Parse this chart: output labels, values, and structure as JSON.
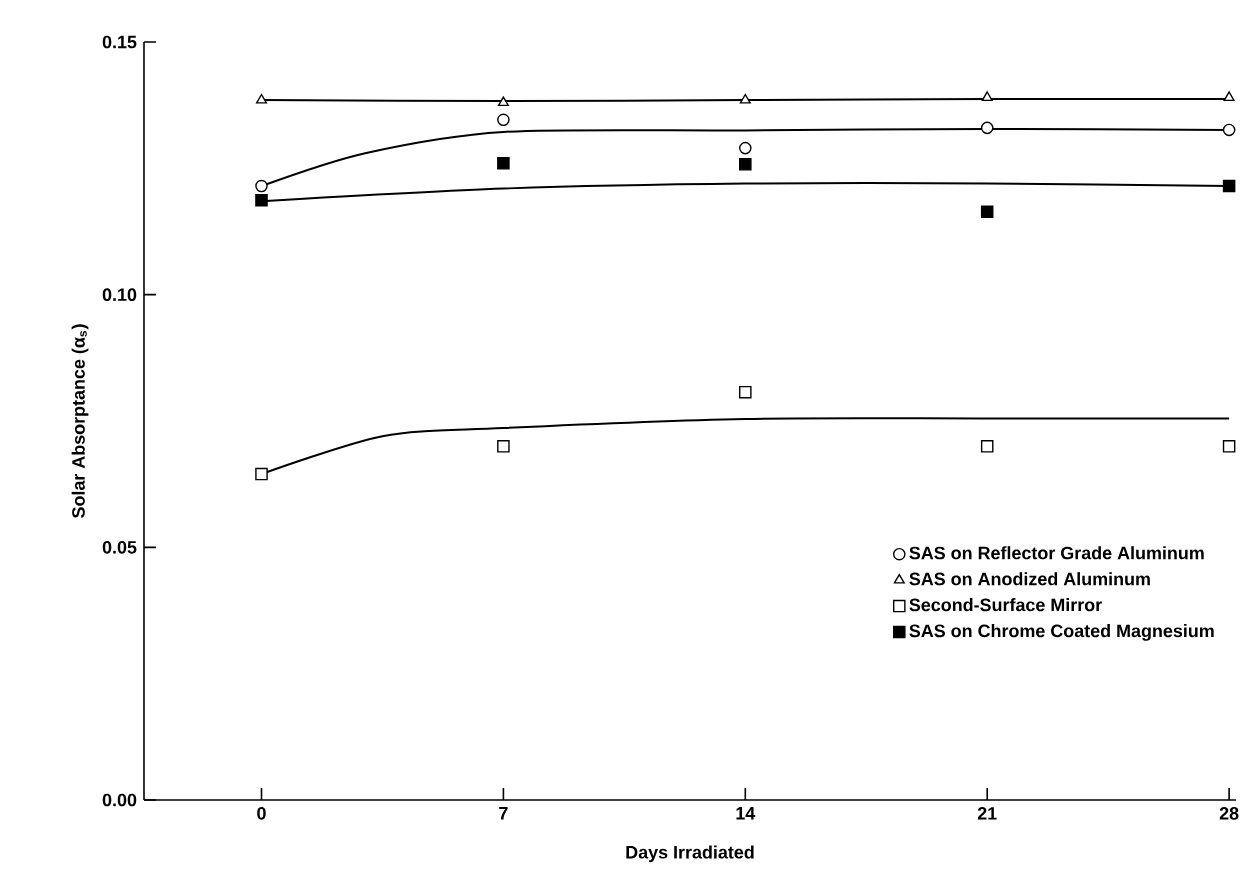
{
  "chart_data": {
    "type": "scatter",
    "xlabel": "Days Irradiated",
    "ylabel": "Solar Absorptance (α$_{s}$)",
    "xlim": [
      -3.4,
      28.2
    ],
    "ylim": [
      0,
      0.15
    ],
    "xticks": [
      0,
      7,
      14,
      21,
      28
    ],
    "yticks": [
      {
        "value": 0,
        "label": "0.00"
      },
      0.05,
      {
        "value": 0.1,
        "label": "0.10"
      },
      0.15
    ],
    "legend": "bottom right",
    "grid": false,
    "series": [
      {
        "name": "SAS on Reflector Grade Aluminum",
        "color": "#000000",
        "marker": "circle",
        "x": [
          0,
          7,
          14,
          21,
          28
        ],
        "values": [
          0.1215,
          0.1346,
          0.129,
          0.133,
          0.1326
        ]
      },
      {
        "name": "SAS on Anodized Aluminum",
        "color": "#000000",
        "marker": "triangle",
        "x": [
          0,
          7,
          14,
          21,
          28
        ],
        "values": [
          0.1385,
          0.138,
          0.1385,
          0.139,
          0.139
        ]
      },
      {
        "name": "Second-Surface Mirror",
        "color": "#000000",
        "marker": "square",
        "x": [
          0,
          7,
          14,
          21,
          28
        ],
        "values": [
          0.0645,
          0.07,
          0.0807,
          0.07,
          0.07
        ]
      },
      {
        "name": "SAS on Chrome Coated Magnesium",
        "color": "#000000",
        "marker": "square",
        "x": [
          0,
          7,
          14,
          21,
          28
        ],
        "values": [
          0.1187,
          0.126,
          0.1258,
          0.1164,
          0.1215
        ]
      },
      {
        "type": "line",
        "color": "#000000",
        "marker": "none",
        "line_style": "solid",
        "x": [
          0,
          3,
          7,
          14,
          21,
          28
        ],
        "values": [
          0.1215,
          0.128,
          0.1322,
          0.1325,
          0.1328,
          0.1326
        ]
      },
      {
        "type": "line",
        "color": "#000000",
        "marker": "none",
        "line_style": "solid",
        "x": [
          0,
          7,
          14,
          21,
          28
        ],
        "values": [
          0.1385,
          0.1383,
          0.1385,
          0.1387,
          0.1387
        ]
      },
      {
        "type": "line",
        "color": "#000000",
        "marker": "none",
        "line_style": "solid",
        "x": [
          0,
          3.5,
          7,
          14,
          21,
          28
        ],
        "values": [
          0.0645,
          0.072,
          0.0736,
          0.0754,
          0.0755,
          0.0755
        ]
      },
      {
        "type": "line",
        "color": "#000000",
        "marker": "none",
        "line_style": "solid",
        "x": [
          0,
          7,
          14,
          21,
          28
        ],
        "values": [
          0.1185,
          0.121,
          0.122,
          0.122,
          0.1215
        ]
      }
    ]
  }
}
